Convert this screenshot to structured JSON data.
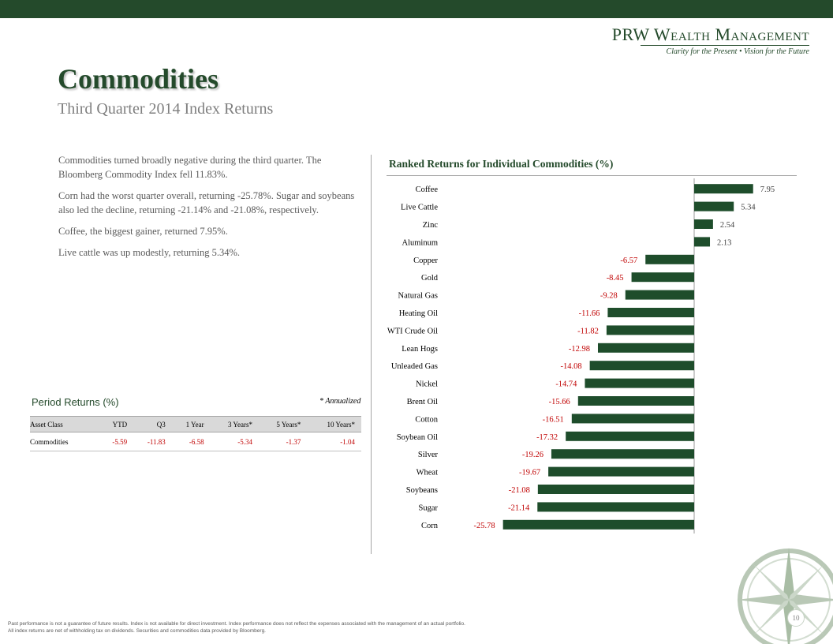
{
  "header": {
    "logo_name": "PRW Wealth Management",
    "logo_tagline": "Clarity for the Present  •  Vision for the Future",
    "accent_color": "#244a2b"
  },
  "page": {
    "title": "Commodities",
    "subtitle": "Third Quarter 2014 Index Returns",
    "page_number": "10"
  },
  "body": {
    "paragraphs": [
      "Commodities turned broadly negative during the third quarter. The Bloomberg Commodity Index fell 11.83%.",
      "Corn had the worst quarter overall, returning -25.78%. Sugar and soybeans also led the decline, returning -21.14% and -21.08%, respectively.",
      "Coffee, the biggest gainer, returned 7.95%.",
      "Live cattle was up modestly, returning 5.34%."
    ]
  },
  "period_returns": {
    "title": "Period Returns (%)",
    "note": "* Annualized",
    "headers": [
      "Asset Class",
      "YTD",
      "Q3",
      "1 Year",
      "3 Years*",
      "5 Years*",
      "10 Years*"
    ],
    "rows": [
      [
        "Commodities",
        "-5.59",
        "-11.83",
        "-6.58",
        "-5.34",
        "-1.37",
        "-1.04"
      ]
    ]
  },
  "chart_data": {
    "type": "bar",
    "orientation": "horizontal",
    "title": "Ranked Returns for Individual Commodities (%)",
    "bar_color": "#1e4d2b",
    "positive_label_color": "#404040",
    "negative_label_color": "#c00000",
    "categories": [
      "Coffee",
      "Live Cattle",
      "Zinc",
      "Aluminum",
      "Copper",
      "Gold",
      "Natural Gas",
      "Heating Oil",
      "WTI Crude Oil",
      "Lean Hogs",
      "Unleaded Gas",
      "Nickel",
      "Brent Oil",
      "Cotton",
      "Soybean Oil",
      "Silver",
      "Wheat",
      "Soybeans",
      "Sugar",
      "Corn"
    ],
    "values": [
      7.95,
      5.34,
      2.54,
      2.13,
      -6.57,
      -8.45,
      -9.28,
      -11.66,
      -11.82,
      -12.98,
      -14.08,
      -14.74,
      -15.66,
      -16.51,
      -17.32,
      -19.26,
      -19.67,
      -21.08,
      -21.14,
      -25.78
    ],
    "value_labels": [
      "7.95",
      "5.34",
      "2.54",
      "2.13",
      "-6.57",
      "-8.45",
      "-9.28",
      "-11.66",
      "-11.82",
      "-12.98",
      "-14.08",
      "-14.74",
      "-15.66",
      "-16.51",
      "-17.32",
      "-19.26",
      "-19.67",
      "-21.08",
      "-21.14",
      "-25.78"
    ],
    "xlim": [
      -26,
      9
    ],
    "grid": false,
    "legend": "none"
  },
  "footer": {
    "line1": "Past performance is not a guarantee of future results. Index is not available for direct investment. Index performance does not reflect the expenses associated with the management of an actual portfolio.",
    "line2": "All index returns are net of withholding tax on dividends. Securities and commodities data provided by Bloomberg."
  }
}
